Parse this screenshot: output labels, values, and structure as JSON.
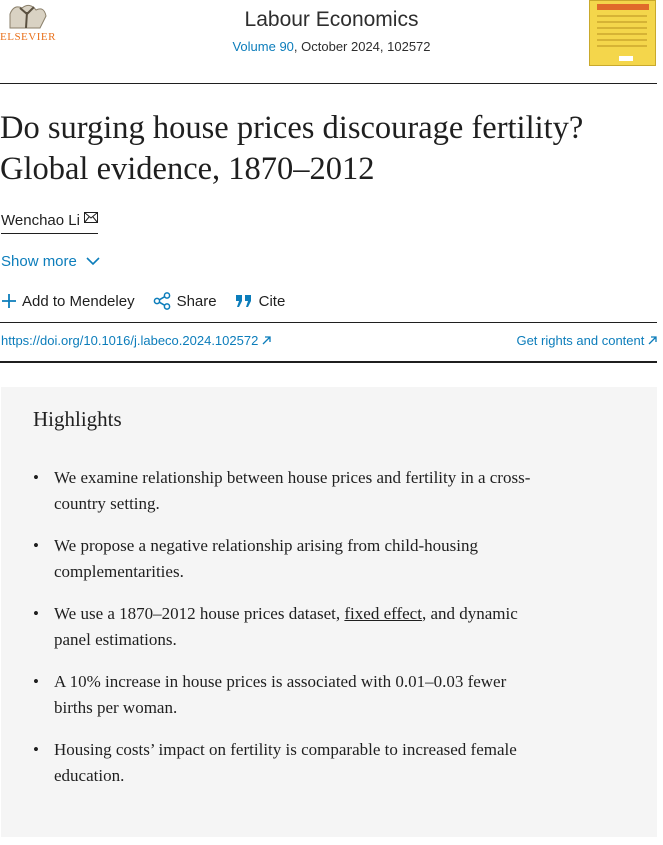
{
  "header": {
    "publisher": "ELSEVIER",
    "journal": "Labour Economics",
    "volume": "Volume 90",
    "issue": ", October 2024, 102572"
  },
  "article": {
    "title_lines": [
      "Do surging house prices discourage fertility?",
      "Global evidence, 1870–2012"
    ],
    "author": "Wenchao Li",
    "show_more": "Show more",
    "actions": [
      "Add to Mendeley",
      "Share",
      "Cite"
    ],
    "doi": "https://doi.org/10.1016/j.labeco.2024.102572",
    "rights": "Get rights and content"
  },
  "highlights": {
    "heading": "Highlights",
    "items": [
      [
        "We examine relationship between house prices and fertility in a cross-country setting."
      ],
      [
        "We propose a negative relationship arising from child-housing complementarities."
      ],
      [
        "We use a 1870–2012 house prices dataset, ",
        "fixed effect",
        ", and dynamic panel estimations."
      ],
      [
        "A 10% increase in house prices is associated with 0.01–0.03 fewer births per woman."
      ],
      [
        "Housing costs’ impact on fertility is comparable to increased female education."
      ]
    ]
  }
}
